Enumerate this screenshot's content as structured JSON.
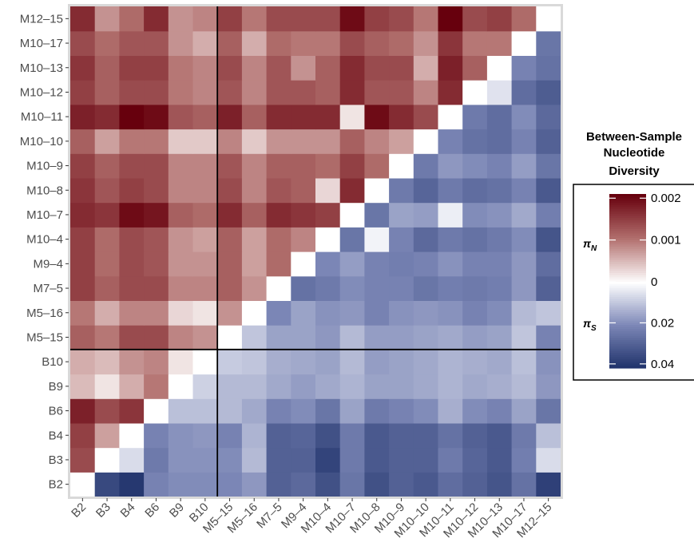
{
  "chart_data": {
    "type": "heatmap",
    "title": "",
    "x_categories": [
      "B2",
      "B3",
      "B4",
      "B6",
      "B9",
      "B10",
      "M5–15",
      "M5–16",
      "M7–5",
      "M9–4",
      "M10–4",
      "M10–7",
      "M10–8",
      "M10–9",
      "M10–10",
      "M10–11",
      "M10–12",
      "M10–13",
      "M10–17",
      "M12–15"
    ],
    "y_categories": [
      "B2",
      "B3",
      "B4",
      "B6",
      "B9",
      "B10",
      "M5–15",
      "M5–16",
      "M7–5",
      "M9–4",
      "M10–4",
      "M10–7",
      "M10–8",
      "M10–9",
      "M10–10",
      "M10–11",
      "M10–12",
      "M10–13",
      "M10–17",
      "M12–15"
    ],
    "cells_note": "rows follow y_categories bottom to top; upper triangle = piN, lower triangle = piS",
    "upper_piN": [
      [
        null,
        null,
        null,
        null,
        null,
        null,
        null,
        null,
        null,
        null,
        null,
        null,
        null,
        null,
        null,
        null,
        null,
        null,
        null,
        null
      ],
      [
        0.0014,
        null,
        null,
        null,
        null,
        null,
        null,
        null,
        null,
        null,
        null,
        null,
        null,
        null,
        null,
        null,
        null,
        null,
        null,
        null
      ],
      [
        0.0015,
        0.0007,
        null,
        null,
        null,
        null,
        null,
        null,
        null,
        null,
        null,
        null,
        null,
        null,
        null,
        null,
        null,
        null,
        null,
        null
      ],
      [
        0.0018,
        0.0014,
        0.0016,
        null,
        null,
        null,
        null,
        null,
        null,
        null,
        null,
        null,
        null,
        null,
        null,
        null,
        null,
        null,
        null,
        null
      ],
      [
        0.0005,
        0.0002,
        0.0006,
        0.001,
        null,
        null,
        null,
        null,
        null,
        null,
        null,
        null,
        null,
        null,
        null,
        null,
        null,
        null,
        null,
        null
      ],
      [
        0.0006,
        0.0005,
        0.0008,
        0.0009,
        0.0002,
        null,
        null,
        null,
        null,
        null,
        null,
        null,
        null,
        null,
        null,
        null,
        null,
        null,
        null,
        null
      ],
      [
        0.0012,
        0.001,
        0.0014,
        0.0014,
        0.0009,
        0.0008,
        null,
        null,
        null,
        null,
        null,
        null,
        null,
        null,
        null,
        null,
        null,
        null,
        null,
        null
      ],
      [
        0.001,
        0.0006,
        0.0009,
        0.0009,
        0.0003,
        0.0002,
        0.0008,
        null,
        null,
        null,
        null,
        null,
        null,
        null,
        null,
        null,
        null,
        null,
        null,
        null
      ],
      [
        0.0015,
        0.0012,
        0.0014,
        0.0014,
        0.0009,
        0.0009,
        0.0012,
        0.0008,
        null,
        null,
        null,
        null,
        null,
        null,
        null,
        null,
        null,
        null,
        null,
        null
      ],
      [
        0.0015,
        0.0011,
        0.0014,
        0.0013,
        0.0008,
        0.0008,
        0.0012,
        0.0007,
        0.0011,
        null,
        null,
        null,
        null,
        null,
        null,
        null,
        null,
        null,
        null,
        null
      ],
      [
        0.0015,
        0.0011,
        0.0014,
        0.0013,
        0.0008,
        0.0007,
        0.0012,
        0.0007,
        0.0011,
        0.0009,
        null,
        null,
        null,
        null,
        null,
        null,
        null,
        null,
        null,
        null
      ],
      [
        0.0017,
        0.0016,
        0.002,
        0.0019,
        0.0012,
        0.0011,
        0.0017,
        0.0012,
        0.0017,
        0.0016,
        0.0015,
        null,
        null,
        null,
        null,
        null,
        null,
        null,
        null,
        null
      ],
      [
        0.0016,
        0.0013,
        0.0015,
        0.0014,
        0.0009,
        0.0009,
        0.0014,
        0.0009,
        0.0013,
        0.0012,
        0.0003,
        0.0017,
        null,
        null,
        null,
        null,
        null,
        null,
        null,
        null
      ],
      [
        0.0015,
        0.0012,
        0.0014,
        0.0014,
        0.0009,
        0.0009,
        0.0013,
        0.0009,
        0.0012,
        0.0012,
        0.0011,
        0.0015,
        0.0011,
        null,
        null,
        null,
        null,
        null,
        null,
        null
      ],
      [
        0.0012,
        0.0007,
        0.001,
        0.001,
        0.0004,
        0.0004,
        0.0009,
        0.0004,
        0.0008,
        0.0008,
        0.0008,
        0.0012,
        0.0009,
        0.0007,
        null,
        null,
        null,
        null,
        null,
        null
      ],
      [
        0.0018,
        0.0017,
        0.0021,
        0.002,
        0.0013,
        0.0012,
        0.0018,
        0.0012,
        0.0017,
        0.0017,
        0.0017,
        0.0002,
        0.002,
        0.0017,
        0.0014,
        null,
        null,
        null,
        null,
        null
      ],
      [
        0.0015,
        0.0012,
        0.0014,
        0.0014,
        0.001,
        0.0009,
        0.0013,
        0.0009,
        0.0013,
        0.0013,
        0.0012,
        0.0017,
        0.0013,
        0.0013,
        0.0009,
        0.0017,
        null,
        null,
        null,
        null
      ],
      [
        0.0016,
        0.0012,
        0.0015,
        0.0015,
        0.001,
        0.0009,
        0.0014,
        0.0009,
        0.0013,
        0.0008,
        0.0012,
        0.0017,
        0.0014,
        0.0014,
        0.0006,
        0.0018,
        0.0012,
        null,
        null,
        null
      ],
      [
        0.0014,
        0.0011,
        0.0013,
        0.0013,
        0.0008,
        0.0006,
        0.0012,
        0.0006,
        0.0011,
        0.001,
        0.001,
        0.0014,
        0.0012,
        0.0011,
        0.0008,
        0.0016,
        0.001,
        0.001,
        null,
        null
      ],
      [
        0.0017,
        0.0008,
        0.0011,
        0.0017,
        0.0008,
        0.0009,
        0.0015,
        0.001,
        0.0014,
        0.0014,
        0.0014,
        0.002,
        0.0015,
        0.0014,
        0.001,
        0.0021,
        0.0014,
        0.0015,
        0.0011,
        null
      ]
    ],
    "lower_piS": [
      [
        null,
        0.036,
        0.04,
        0.022,
        0.02,
        0.02,
        0.021,
        0.018,
        0.03,
        0.028,
        0.034,
        0.025,
        0.034,
        0.03,
        0.032,
        0.027,
        0.03,
        0.033,
        0.026,
        0.038
      ],
      [
        null,
        null,
        0.006,
        0.024,
        0.019,
        0.019,
        0.02,
        0.012,
        0.03,
        0.03,
        0.037,
        0.024,
        0.032,
        0.03,
        0.03,
        0.024,
        0.029,
        0.032,
        0.023,
        0.006
      ],
      [
        null,
        null,
        null,
        0.022,
        0.019,
        0.018,
        0.022,
        0.013,
        0.03,
        0.029,
        0.034,
        0.024,
        0.032,
        0.03,
        0.03,
        0.026,
        0.03,
        0.032,
        0.024,
        0.011
      ],
      [
        null,
        null,
        null,
        null,
        0.011,
        0.011,
        0.012,
        0.015,
        0.022,
        0.02,
        0.025,
        0.016,
        0.024,
        0.022,
        0.02,
        0.014,
        0.02,
        0.022,
        0.016,
        0.025
      ],
      [
        null,
        null,
        null,
        null,
        null,
        0.008,
        0.012,
        0.012,
        0.015,
        0.017,
        0.015,
        0.013,
        0.016,
        0.016,
        0.015,
        0.013,
        0.015,
        0.014,
        0.012,
        0.018
      ],
      [
        null,
        null,
        null,
        null,
        null,
        null,
        0.009,
        0.01,
        0.014,
        0.015,
        0.016,
        0.012,
        0.017,
        0.016,
        0.015,
        0.013,
        0.014,
        0.015,
        0.011,
        0.019
      ],
      [
        null,
        null,
        null,
        null,
        null,
        null,
        null,
        0.01,
        0.016,
        0.016,
        0.018,
        0.012,
        0.017,
        0.017,
        0.016,
        0.015,
        0.017,
        0.016,
        0.01,
        0.022
      ],
      [
        null,
        null,
        null,
        null,
        null,
        null,
        null,
        null,
        0.021,
        0.016,
        0.019,
        0.018,
        0.022,
        0.019,
        0.018,
        0.019,
        0.022,
        0.02,
        0.012,
        0.01
      ],
      [
        null,
        null,
        null,
        null,
        null,
        null,
        null,
        null,
        null,
        0.026,
        0.024,
        0.02,
        0.022,
        0.022,
        0.025,
        0.023,
        0.024,
        0.023,
        0.018,
        0.03
      ],
      [
        null,
        null,
        null,
        null,
        null,
        null,
        null,
        null,
        null,
        null,
        0.021,
        0.017,
        0.022,
        0.023,
        0.022,
        0.019,
        0.022,
        0.022,
        0.018,
        0.027
      ],
      [
        null,
        null,
        null,
        null,
        null,
        null,
        null,
        null,
        null,
        null,
        null,
        0.025,
        0.002,
        0.022,
        0.028,
        0.024,
        0.026,
        0.024,
        0.02,
        0.033
      ],
      [
        null,
        null,
        null,
        null,
        null,
        null,
        null,
        null,
        null,
        null,
        null,
        null,
        0.025,
        0.016,
        0.017,
        0.003,
        0.02,
        0.019,
        0.015,
        0.023
      ],
      [
        null,
        null,
        null,
        null,
        null,
        null,
        null,
        null,
        null,
        null,
        null,
        null,
        null,
        0.024,
        0.029,
        0.024,
        0.027,
        0.026,
        0.022,
        0.032
      ],
      [
        null,
        null,
        null,
        null,
        null,
        null,
        null,
        null,
        null,
        null,
        null,
        null,
        null,
        null,
        0.024,
        0.018,
        0.02,
        0.022,
        0.017,
        0.025
      ],
      [
        null,
        null,
        null,
        null,
        null,
        null,
        null,
        null,
        null,
        null,
        null,
        null,
        null,
        null,
        null,
        0.022,
        0.026,
        0.027,
        0.022,
        0.03
      ],
      [
        null,
        null,
        null,
        null,
        null,
        null,
        null,
        null,
        null,
        null,
        null,
        null,
        null,
        null,
        null,
        null,
        0.024,
        0.027,
        0.02,
        0.028
      ],
      [
        null,
        null,
        null,
        null,
        null,
        null,
        null,
        null,
        null,
        null,
        null,
        null,
        null,
        null,
        null,
        null,
        null,
        0.005,
        0.027,
        0.031
      ],
      [
        null,
        null,
        null,
        null,
        null,
        null,
        null,
        null,
        null,
        null,
        null,
        null,
        null,
        null,
        null,
        null,
        null,
        null,
        0.022,
        0.026
      ],
      [
        null,
        null,
        null,
        null,
        null,
        null,
        null,
        null,
        null,
        null,
        null,
        null,
        null,
        null,
        null,
        null,
        null,
        null,
        null,
        0.025
      ],
      [
        null,
        null,
        null,
        null,
        null,
        null,
        null,
        null,
        null,
        null,
        null,
        null,
        null,
        null,
        null,
        null,
        null,
        null,
        null,
        null
      ]
    ],
    "group_divider_after": "B10",
    "legend": {
      "title_lines": [
        "Between-Sample",
        "Nucleotide",
        "Diversity"
      ],
      "position": "right",
      "piN_symbol": "π",
      "piN_sub": "N",
      "piS_symbol": "π",
      "piS_sub": "S",
      "piN_ticks": [
        0.001,
        0.002
      ],
      "piN_tick_labels": [
        "0.001",
        "0.002"
      ],
      "piS_ticks": [
        0.02,
        0.04
      ],
      "piS_tick_labels": [
        "0.02",
        "0.04"
      ],
      "zero_label": "0",
      "piN_max": 0.0021,
      "piS_max": 0.042
    },
    "colors": {
      "high_red": "#67000d",
      "mid_red": "#b2706e",
      "white": "#ffffff",
      "mid_blue": "#7b86b6",
      "high_blue": "#1d3069",
      "panel_border": "#d9d9d9",
      "divider": "#000000"
    }
  }
}
